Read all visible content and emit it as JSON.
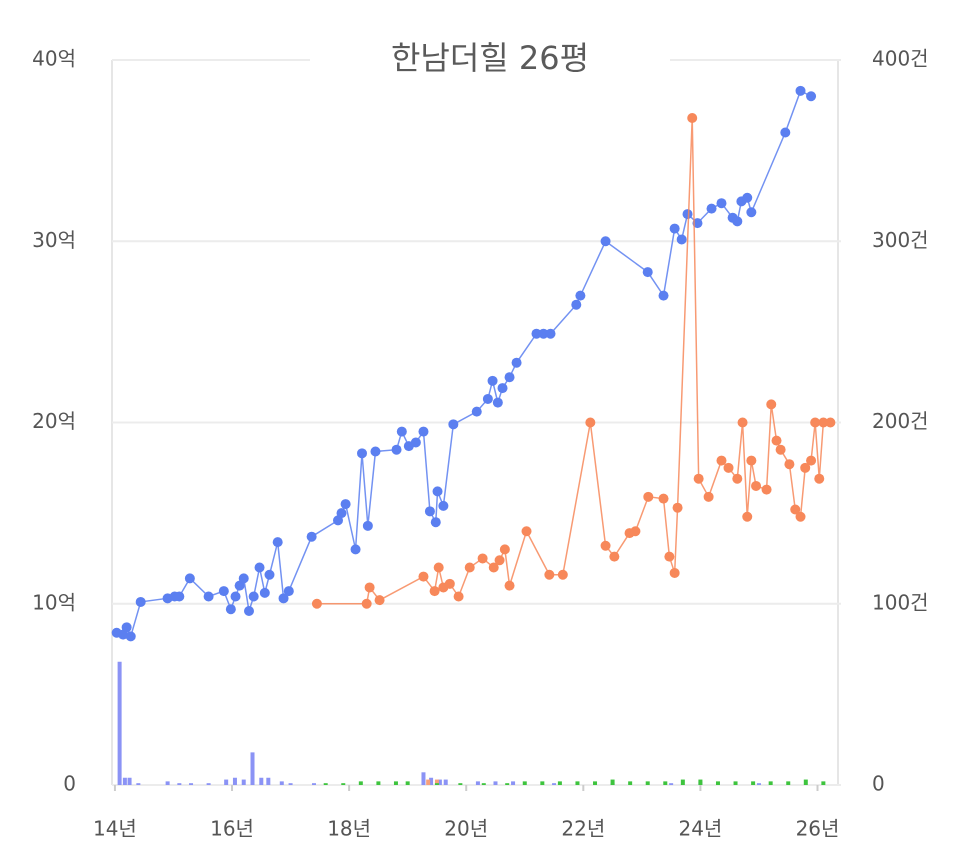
{
  "chart_data": {
    "type": "line",
    "title": "한남더힐 26평",
    "xlim": [
      13.95,
      26.35
    ],
    "xticks": [
      {
        "value": 14,
        "label": "14년"
      },
      {
        "value": 16,
        "label": "16년"
      },
      {
        "value": 18,
        "label": "18년"
      },
      {
        "value": 20,
        "label": "20년"
      },
      {
        "value": 22,
        "label": "22년"
      },
      {
        "value": 24,
        "label": "24년"
      },
      {
        "value": 26,
        "label": "26년"
      }
    ],
    "ylim": [
      0,
      40
    ],
    "yticks": [
      0,
      {
        "value": 10,
        "label": "10억"
      },
      {
        "value": 20,
        "label": "20억"
      },
      {
        "value": 30,
        "label": "30억"
      },
      {
        "value": 40,
        "label": "40억"
      }
    ],
    "y2lim": [
      0,
      400
    ],
    "y2ticks": [
      0,
      {
        "value": 100,
        "label": "100건"
      },
      {
        "value": 200,
        "label": "200건"
      },
      {
        "value": 300,
        "label": "300건"
      },
      {
        "value": 400,
        "label": "400건"
      }
    ],
    "grid": true,
    "series": [
      {
        "kind": "bar",
        "axis": "y2",
        "color": "#8b93f5",
        "x": [
          14.08,
          14.17,
          14.25,
          14.4,
          14.9,
          15.1,
          15.3,
          15.6,
          15.9,
          16.05,
          16.2,
          16.35,
          16.5,
          16.62,
          16.85,
          17.0,
          17.4,
          19.27,
          19.4,
          19.55,
          19.65,
          20.2,
          20.5,
          20.8,
          21.5,
          22.5,
          23.5,
          24.0,
          25.0
        ],
        "values": [
          68,
          4,
          4,
          1,
          2,
          1,
          1,
          1,
          3,
          4,
          3,
          18,
          4,
          4,
          2,
          1,
          1,
          7,
          4,
          3,
          3,
          2,
          2,
          2,
          1,
          1,
          1,
          2,
          1
        ]
      },
      {
        "kind": "bar",
        "axis": "y2",
        "color": "#f7a07a",
        "x": [
          19.35,
          19.5
        ],
        "values": [
          3,
          3
        ]
      },
      {
        "kind": "bar",
        "axis": "y2",
        "color": "#3ec43e",
        "x": [
          17.6,
          17.9,
          18.2,
          18.5,
          18.8,
          19.0,
          19.5,
          19.9,
          20.3,
          20.7,
          21.0,
          21.3,
          21.6,
          21.9,
          22.2,
          22.5,
          22.8,
          23.1,
          23.4,
          23.7,
          24.0,
          24.3,
          24.6,
          24.9,
          25.2,
          25.5,
          25.8,
          26.1
        ],
        "values": [
          1,
          1,
          2,
          2,
          2,
          2,
          1,
          1,
          1,
          1,
          2,
          2,
          2,
          2,
          2,
          3,
          2,
          2,
          2,
          3,
          3,
          2,
          2,
          2,
          2,
          2,
          3,
          2
        ]
      },
      {
        "kind": "line",
        "color": "#5b7ff0",
        "x": [
          14.03,
          14.14,
          14.2,
          14.27,
          14.44,
          14.9,
          15.02,
          15.1,
          15.28,
          15.6,
          15.86,
          15.98,
          16.06,
          16.13,
          16.2,
          16.29,
          16.37,
          16.47,
          16.56,
          16.64,
          16.78,
          16.88,
          16.97,
          17.36,
          17.81,
          17.87,
          17.94,
          18.11,
          18.22,
          18.32,
          18.45,
          18.81,
          18.9,
          19.02,
          19.14,
          19.27,
          19.38,
          19.48,
          19.51,
          19.61,
          19.78,
          20.18,
          20.37,
          20.45,
          20.54,
          20.62,
          20.74,
          20.86,
          21.2,
          21.32,
          21.44,
          21.88,
          21.95,
          22.38,
          23.1,
          23.37,
          23.56,
          23.68,
          23.78,
          23.95,
          24.19,
          24.36,
          24.55,
          24.63,
          24.7,
          24.8,
          24.87,
          25.45,
          25.71,
          25.89
        ],
        "values": [
          8.4,
          8.3,
          8.7,
          8.2,
          10.1,
          10.3,
          10.4,
          10.4,
          11.4,
          10.4,
          10.7,
          9.7,
          10.4,
          11.0,
          11.4,
          9.6,
          10.4,
          12.0,
          10.6,
          11.6,
          13.4,
          10.3,
          10.7,
          13.7,
          14.6,
          15.0,
          15.5,
          13.0,
          18.3,
          14.3,
          18.4,
          18.5,
          19.5,
          18.7,
          18.9,
          19.5,
          15.1,
          14.5,
          16.2,
          15.4,
          19.9,
          20.6,
          21.3,
          22.3,
          21.1,
          21.9,
          22.5,
          23.3,
          24.9,
          24.9,
          24.9,
          26.5,
          27.0,
          30.0,
          28.3,
          27.0,
          30.7,
          30.1,
          31.5,
          31.0,
          31.8,
          32.1,
          31.3,
          31.1,
          32.2,
          32.4,
          31.6,
          36.0,
          38.3,
          38.0
        ]
      },
      {
        "kind": "line",
        "color": "#f7885a",
        "x": [
          17.45,
          18.3,
          18.35,
          18.52,
          19.27,
          19.46,
          19.53,
          19.61,
          19.72,
          19.87,
          20.06,
          20.28,
          20.47,
          20.57,
          20.66,
          20.74,
          21.03,
          21.42,
          21.65,
          22.12,
          22.38,
          22.53,
          22.79,
          22.89,
          23.11,
          23.37,
          23.47,
          23.56,
          23.61,
          23.86,
          23.97,
          24.14,
          24.36,
          24.48,
          24.63,
          24.72,
          24.8,
          24.87,
          24.95,
          25.13,
          25.21,
          25.3,
          25.37,
          25.52,
          25.62,
          25.71,
          25.79,
          25.89,
          25.96,
          26.03,
          26.1,
          26.22
        ],
        "values": [
          10.0,
          10.0,
          10.9,
          10.2,
          11.5,
          10.7,
          12.0,
          10.9,
          11.1,
          10.4,
          12.0,
          12.5,
          12.0,
          12.4,
          13.0,
          11.0,
          14.0,
          11.6,
          11.6,
          20.0,
          13.2,
          12.6,
          13.9,
          14.0,
          15.9,
          15.8,
          12.6,
          11.7,
          15.3,
          36.8,
          16.9,
          15.9,
          17.9,
          17.5,
          16.9,
          20.0,
          14.8,
          17.9,
          16.5,
          16.3,
          21.0,
          19.0,
          18.5,
          17.7,
          15.2,
          14.8,
          17.5,
          17.9,
          20.0,
          16.9,
          20.0,
          20.0
        ]
      }
    ]
  }
}
